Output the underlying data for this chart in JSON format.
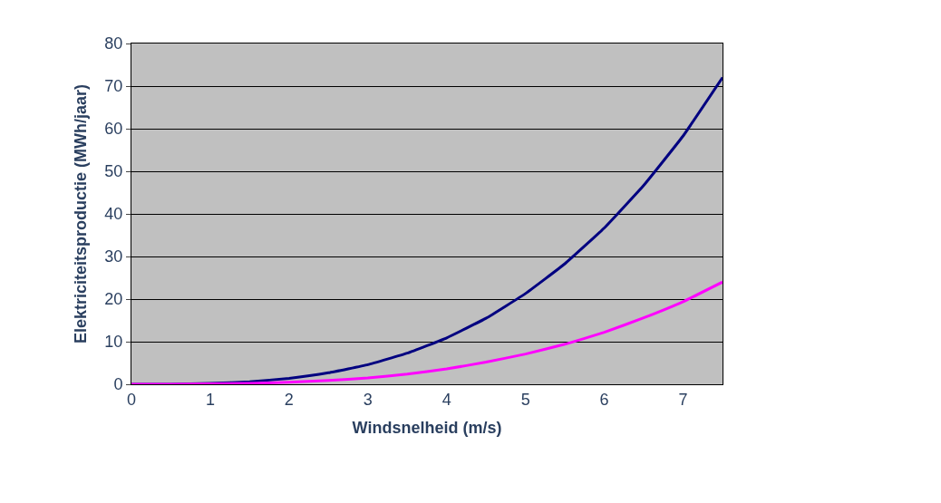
{
  "chart_data": {
    "type": "line",
    "xlabel": "Windsnelheid (m/s)",
    "ylabel": "Elektriciteitsproductie (MWh/jaar)",
    "x": [
      0,
      0.5,
      1,
      1.5,
      2,
      2.5,
      3,
      3.5,
      4,
      4.5,
      5,
      5.5,
      6,
      6.5,
      7,
      7.5
    ],
    "series": [
      {
        "color": "#000080",
        "values": [
          0,
          0,
          0.2,
          0.6,
          1.4,
          2.7,
          4.6,
          7.3,
          10.9,
          15.5,
          21.3,
          28.3,
          36.7,
          46.7,
          58.3,
          72
        ]
      },
      {
        "color": "#ff00ff",
        "values": [
          0,
          0,
          0.1,
          0.2,
          0.5,
          0.9,
          1.5,
          2.4,
          3.6,
          5.2,
          7.1,
          9.4,
          12.2,
          15.6,
          19.4,
          24
        ]
      }
    ],
    "xlim": [
      0,
      7.5
    ],
    "xticks": [
      0,
      1,
      2,
      3,
      4,
      5,
      6,
      7
    ],
    "ylim": [
      0,
      80
    ],
    "yticks": [
      0,
      10,
      20,
      30,
      40,
      50,
      60,
      70,
      80
    ],
    "grid": "y",
    "marker": "none",
    "line_style": "solid"
  }
}
